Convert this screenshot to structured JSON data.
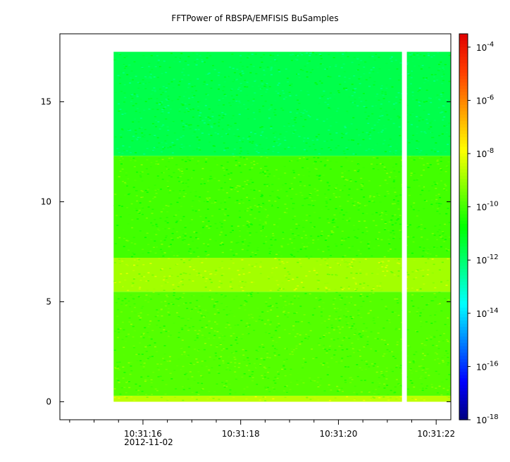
{
  "chart_data": {
    "type": "heatmap",
    "title": "FFTPower of RBSPA/EMFISIS  BuSamples",
    "x": {
      "ticks": [
        {
          "t": 16,
          "label": "10:31:16"
        },
        {
          "t": 18,
          "label": "10:31:18"
        },
        {
          "t": 20,
          "label": "10:31:20"
        },
        {
          "t": 22,
          "label": "10:31:22"
        }
      ],
      "date_label": "2012-11-02",
      "range_seconds": [
        14.3,
        22.3
      ],
      "minor_ticks_seconds": [
        14.5,
        15,
        15.5,
        16.5,
        17,
        17.5,
        18.5,
        19,
        19.5,
        20.5,
        21,
        21.5
      ],
      "data_start_seconds": 15.4,
      "data_end_seconds": 22.3,
      "gap_seconds": [
        21.3,
        21.4
      ]
    },
    "y": {
      "range": [
        -0.9,
        18.4
      ],
      "ticks": [
        0,
        5,
        10,
        15
      ],
      "data_range": [
        0,
        17.5
      ]
    },
    "z": {
      "scale": "log",
      "range_exponent": [
        -18,
        -3.5
      ],
      "ticks": [
        {
          "base": "10",
          "exp": "-4",
          "e": -4
        },
        {
          "base": "10",
          "exp": "-6",
          "e": -6
        },
        {
          "base": "10",
          "exp": "-8",
          "e": -8
        },
        {
          "base": "10",
          "exp": "-10",
          "e": -10
        },
        {
          "base": "10",
          "exp": "-12",
          "e": -12
        },
        {
          "base": "10",
          "exp": "-14",
          "e": -14
        },
        {
          "base": "10",
          "exp": "-16",
          "e": -16
        },
        {
          "base": "10",
          "exp": "-18",
          "e": -18
        }
      ]
    },
    "bands": [
      {
        "y": [
          0,
          0.3
        ],
        "log10_power": -8.6
      },
      {
        "y": [
          0.3,
          5.5
        ],
        "log10_power": -9.8
      },
      {
        "y": [
          5.5,
          7.2
        ],
        "log10_power": -8.9
      },
      {
        "y": [
          7.2,
          12.3
        ],
        "log10_power": -10.0
      },
      {
        "y": [
          12.3,
          17.5
        ],
        "log10_power": -11.6
      }
    ],
    "colors": [
      "#00007f",
      "#0000ff",
      "#007fff",
      "#00ffff",
      "#00ff80",
      "#00ff00",
      "#80ff00",
      "#ffff00",
      "#ffa000",
      "#ff4000",
      "#e00000"
    ]
  }
}
